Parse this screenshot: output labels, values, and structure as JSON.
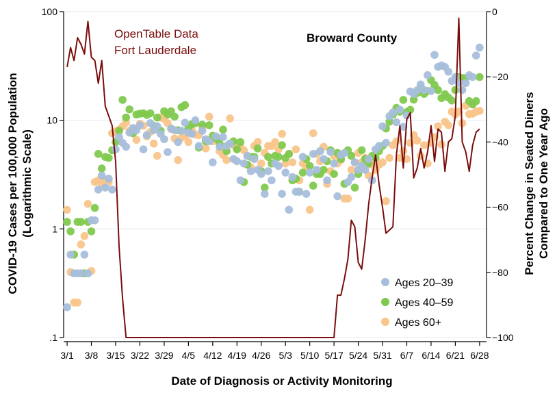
{
  "chart_data": {
    "type": "scatter",
    "title": "Broward County",
    "annotation": [
      "OpenTable Data",
      "Fort Lauderdale"
    ],
    "xlabel": "Date of Diagnosis or Activity Monitoring",
    "ylabel_left": [
      "COVID-19 Cases per 100,000 Population",
      "(Logarithmic Scale)"
    ],
    "ylabel_right": [
      "Percent Change in Seated Diners",
      "Compared to One Year Ago"
    ],
    "x_ticks": [
      "3/1",
      "3/8",
      "3/15",
      "3/22",
      "3/29",
      "4/5",
      "4/12",
      "4/19",
      "4/26",
      "5/3",
      "5/10",
      "5/17",
      "5/24",
      "5/31",
      "6/7",
      "6/14",
      "6/21",
      "6/28"
    ],
    "x_range": [
      "2020-02-29",
      "2020-06-30"
    ],
    "y_left_scale": "log",
    "y_left_ticks": [
      {
        "v": 0.1,
        "label": ".1"
      },
      {
        "v": 1,
        "label": "1"
      },
      {
        "v": 10,
        "label": "10"
      },
      {
        "v": 100,
        "label": "100"
      }
    ],
    "y_right_ticks": [
      0,
      -20,
      -40,
      -60,
      -80,
      -100
    ],
    "y_right_range": [
      -100,
      0
    ],
    "legend_placement": "bottom-right",
    "line_color": "#7a0c0c",
    "series": [
      {
        "name": "Ages 20–39",
        "color": "#a7bedb",
        "x": [
          "2020-03-01",
          "2020-03-02",
          "2020-03-03",
          "2020-03-04",
          "2020-03-05",
          "2020-03-06",
          "2020-03-07",
          "2020-03-08",
          "2020-03-09",
          "2020-03-10",
          "2020-03-11",
          "2020-03-12",
          "2020-03-13",
          "2020-03-14",
          "2020-03-15",
          "2020-03-16",
          "2020-03-17",
          "2020-03-18",
          "2020-03-19",
          "2020-03-20",
          "2020-03-21",
          "2020-03-22",
          "2020-03-23",
          "2020-03-24",
          "2020-03-25",
          "2020-03-26",
          "2020-03-27",
          "2020-03-28",
          "2020-03-29",
          "2020-03-30",
          "2020-03-31",
          "2020-04-01",
          "2020-04-02",
          "2020-04-03",
          "2020-04-04",
          "2020-04-05",
          "2020-04-06",
          "2020-04-07",
          "2020-04-08",
          "2020-04-09",
          "2020-04-10",
          "2020-04-11",
          "2020-04-12",
          "2020-04-13",
          "2020-04-14",
          "2020-04-15",
          "2020-04-16",
          "2020-04-17",
          "2020-04-18",
          "2020-04-19",
          "2020-04-20",
          "2020-04-21",
          "2020-04-22",
          "2020-04-23",
          "2020-04-24",
          "2020-04-25",
          "2020-04-26",
          "2020-04-27",
          "2020-04-28",
          "2020-04-29",
          "2020-04-30",
          "2020-05-01",
          "2020-05-02",
          "2020-05-03",
          "2020-05-04",
          "2020-05-05",
          "2020-05-06",
          "2020-05-07",
          "2020-05-08",
          "2020-05-09",
          "2020-05-10",
          "2020-05-11",
          "2020-05-12",
          "2020-05-13",
          "2020-05-14",
          "2020-05-15",
          "2020-05-16",
          "2020-05-17",
          "2020-05-18",
          "2020-05-19",
          "2020-05-20",
          "2020-05-21",
          "2020-05-22",
          "2020-05-23",
          "2020-05-24",
          "2020-05-25",
          "2020-05-26",
          "2020-05-27",
          "2020-05-28",
          "2020-05-29",
          "2020-05-30",
          "2020-05-31",
          "2020-06-01",
          "2020-06-02",
          "2020-06-03",
          "2020-06-04",
          "2020-06-05",
          "2020-06-06",
          "2020-06-07",
          "2020-06-08",
          "2020-06-09",
          "2020-06-10",
          "2020-06-11",
          "2020-06-12",
          "2020-06-13",
          "2020-06-14",
          "2020-06-15",
          "2020-06-16",
          "2020-06-17",
          "2020-06-18",
          "2020-06-19",
          "2020-06-20",
          "2020-06-21",
          "2020-06-22",
          "2020-06-23",
          "2020-06-24",
          "2020-06-25",
          "2020-06-26",
          "2020-06-27",
          "2020-06-28"
        ],
        "values": [
          0.19,
          0.58,
          0.39,
          0.39,
          0.39,
          0.58,
          0.39,
          1.2,
          1.2,
          2.3,
          3.1,
          2.4,
          2.9,
          2.3,
          5.4,
          7.0,
          6.2,
          5.7,
          7.7,
          8.5,
          8.1,
          9.0,
          5.4,
          7.3,
          9.4,
          8.1,
          8.8,
          7.5,
          6.7,
          5.1,
          8.4,
          8.1,
          6.3,
          8.0,
          9.5,
          7.7,
          7.5,
          10.0,
          5.8,
          8.0,
          6.7,
          6.4,
          4.1,
          7.1,
          5.7,
          7.0,
          5.8,
          6.1,
          4.4,
          4.2,
          2.8,
          4.0,
          4.7,
          3.4,
          4.4,
          3.5,
          3.2,
          2.1,
          3.4,
          2.8,
          4.0,
          3.8,
          2.1,
          3.3,
          1.5,
          3.0,
          2.2,
          2.2,
          4.6,
          2.1,
          3.3,
          4.9,
          3.5,
          5.2,
          4.4,
          2.8,
          5.1,
          4.0,
          2.0,
          4.8,
          5.0,
          2.7,
          3.0,
          4.1,
          3.5,
          3.8,
          3.5,
          4.4,
          2.8,
          5.4,
          5.8,
          8.8,
          6.2,
          10.9,
          11.8,
          9.6,
          12.5,
          8.7,
          11.1,
          18.4,
          17.5,
          18.9,
          21.4,
          19.0,
          26.0,
          18.6,
          40.0,
          31.0,
          32.0,
          31.0,
          28.0,
          23.0,
          25.0,
          22.0,
          19.0,
          22.0,
          26.0,
          25.0,
          39.5,
          46.7
        ],
        "note_missing": "values approximate"
      },
      {
        "name": "Ages 40–59",
        "color": "#7fc94e",
        "x": [
          "2020-03-01",
          "2020-03-02",
          "2020-03-03",
          "2020-03-04",
          "2020-03-05",
          "2020-03-06",
          "2020-03-07",
          "2020-03-08",
          "2020-03-09",
          "2020-03-10",
          "2020-03-11",
          "2020-03-12",
          "2020-03-13",
          "2020-03-14",
          "2020-03-15",
          "2020-03-16",
          "2020-03-17",
          "2020-03-18",
          "2020-03-19",
          "2020-03-20",
          "2020-03-21",
          "2020-03-22",
          "2020-03-23",
          "2020-03-24",
          "2020-03-25",
          "2020-03-26",
          "2020-03-27",
          "2020-03-28",
          "2020-03-29",
          "2020-03-30",
          "2020-03-31",
          "2020-04-01",
          "2020-04-02",
          "2020-04-03",
          "2020-04-04",
          "2020-04-05",
          "2020-04-06",
          "2020-04-07",
          "2020-04-08",
          "2020-04-09",
          "2020-04-10",
          "2020-04-11",
          "2020-04-12",
          "2020-04-13",
          "2020-04-14",
          "2020-04-15",
          "2020-04-16",
          "2020-04-17",
          "2020-04-18",
          "2020-04-19",
          "2020-04-20",
          "2020-04-21",
          "2020-04-22",
          "2020-04-23",
          "2020-04-24",
          "2020-04-25",
          "2020-04-26",
          "2020-04-27",
          "2020-04-28",
          "2020-04-29",
          "2020-04-30",
          "2020-05-01",
          "2020-05-02",
          "2020-05-03",
          "2020-05-04",
          "2020-05-05",
          "2020-05-06",
          "2020-05-07",
          "2020-05-08",
          "2020-05-09",
          "2020-05-10",
          "2020-05-11",
          "2020-05-12",
          "2020-05-13",
          "2020-05-14",
          "2020-05-15",
          "2020-05-16",
          "2020-05-17",
          "2020-05-18",
          "2020-05-19",
          "2020-05-20",
          "2020-05-21",
          "2020-05-22",
          "2020-05-23",
          "2020-05-24",
          "2020-05-25",
          "2020-05-26",
          "2020-05-27",
          "2020-05-28",
          "2020-05-29",
          "2020-05-30",
          "2020-05-31",
          "2020-06-01",
          "2020-06-02",
          "2020-06-03",
          "2020-06-04",
          "2020-06-05",
          "2020-06-06",
          "2020-06-07",
          "2020-06-08",
          "2020-06-09",
          "2020-06-10",
          "2020-06-11",
          "2020-06-12",
          "2020-06-13",
          "2020-06-14",
          "2020-06-15",
          "2020-06-16",
          "2020-06-17",
          "2020-06-18",
          "2020-06-19",
          "2020-06-20",
          "2020-06-21",
          "2020-06-22",
          "2020-06-23",
          "2020-06-24",
          "2020-06-25",
          "2020-06-26",
          "2020-06-27",
          "2020-06-28"
        ],
        "values": [
          1.16,
          0.95,
          0.58,
          1.16,
          1.16,
          0.39,
          1.16,
          0.95,
          1.56,
          4.9,
          3.6,
          4.6,
          4.5,
          5.3,
          6.3,
          8.0,
          15.4,
          10.6,
          12.6,
          7.6,
          11.3,
          11.5,
          11.6,
          11.2,
          11.6,
          8.9,
          10.6,
          8.0,
          12.1,
          11.3,
          12.1,
          10.8,
          8.1,
          13.2,
          13.8,
          8.5,
          9.2,
          9.4,
          5.6,
          9.1,
          6.4,
          9.0,
          7.2,
          6.8,
          6.1,
          8.2,
          5.2,
          6.1,
          6.4,
          5.4,
          6.3,
          2.7,
          3.9,
          4.6,
          4.6,
          5.5,
          3.4,
          2.4,
          4.6,
          4.0,
          4.7,
          4.6,
          5.9,
          4.5,
          4.9,
          2.8,
          2.9,
          2.2,
          3.3,
          4.4,
          3.8,
          2.5,
          3.2,
          3.2,
          3.5,
          4.2,
          5.3,
          3.2,
          5.0,
          4.4,
          2.6,
          5.3,
          4.7,
          2.4,
          3.2,
          5.3,
          4.4,
          4.0,
          4.7,
          4.5,
          5.2,
          5.8,
          8.4,
          9.7,
          11.3,
          13.0,
          12.0,
          15.4,
          11.9,
          12.5,
          15.5,
          17.8,
          20.0,
          17.5,
          18.6,
          23.4,
          21.1,
          19.0,
          16.0,
          17.4,
          16.2,
          15.2,
          19.0,
          25.0,
          24.5,
          24.5,
          15.0,
          14.0,
          15.0,
          25.0
        ],
        "note_missing": "values approximate"
      },
      {
        "name": "Ages 60+",
        "color": "#f9c58a",
        "x": [
          "2020-03-01",
          "2020-03-02",
          "2020-03-03",
          "2020-03-04",
          "2020-03-05",
          "2020-03-06",
          "2020-03-07",
          "2020-03-08",
          "2020-03-09",
          "2020-03-10",
          "2020-03-11",
          "2020-03-12",
          "2020-03-13",
          "2020-03-14",
          "2020-03-15",
          "2020-03-16",
          "2020-03-17",
          "2020-03-18",
          "2020-03-19",
          "2020-03-20",
          "2020-03-21",
          "2020-03-22",
          "2020-03-23",
          "2020-03-24",
          "2020-03-25",
          "2020-03-26",
          "2020-03-27",
          "2020-03-28",
          "2020-03-29",
          "2020-03-30",
          "2020-03-31",
          "2020-04-01",
          "2020-04-02",
          "2020-04-03",
          "2020-04-04",
          "2020-04-05",
          "2020-04-06",
          "2020-04-07",
          "2020-04-08",
          "2020-04-09",
          "2020-04-10",
          "2020-04-11",
          "2020-04-12",
          "2020-04-13",
          "2020-04-14",
          "2020-04-15",
          "2020-04-16",
          "2020-04-17",
          "2020-04-18",
          "2020-04-19",
          "2020-04-20",
          "2020-04-21",
          "2020-04-22",
          "2020-04-23",
          "2020-04-24",
          "2020-04-25",
          "2020-04-26",
          "2020-04-27",
          "2020-04-28",
          "2020-04-29",
          "2020-04-30",
          "2020-05-01",
          "2020-05-02",
          "2020-05-03",
          "2020-05-04",
          "2020-05-05",
          "2020-05-06",
          "2020-05-07",
          "2020-05-08",
          "2020-05-09",
          "2020-05-10",
          "2020-05-11",
          "2020-05-12",
          "2020-05-13",
          "2020-05-14",
          "2020-05-15",
          "2020-05-16",
          "2020-05-17",
          "2020-05-18",
          "2020-05-19",
          "2020-05-20",
          "2020-05-21",
          "2020-05-22",
          "2020-05-23",
          "2020-05-24",
          "2020-05-25",
          "2020-05-26",
          "2020-05-27",
          "2020-05-28",
          "2020-05-29",
          "2020-05-30",
          "2020-05-31",
          "2020-06-01",
          "2020-06-02",
          "2020-06-03",
          "2020-06-04",
          "2020-06-05",
          "2020-06-06",
          "2020-06-07",
          "2020-06-08",
          "2020-06-09",
          "2020-06-10",
          "2020-06-11",
          "2020-06-12",
          "2020-06-13",
          "2020-06-14",
          "2020-06-15",
          "2020-06-16",
          "2020-06-17",
          "2020-06-18",
          "2020-06-19",
          "2020-06-20",
          "2020-06-21",
          "2020-06-22",
          "2020-06-23",
          "2020-06-24",
          "2020-06-25",
          "2020-06-26",
          "2020-06-27",
          "2020-06-28"
        ],
        "values": [
          1.5,
          0.4,
          0.21,
          0.21,
          0.72,
          0.86,
          1.7,
          0.41,
          2.7,
          2.8,
          2.6,
          2.8,
          2.7,
          7.6,
          7.9,
          8.2,
          8.8,
          9.5,
          8.0,
          8.4,
          6.6,
          9.3,
          8.9,
          7.1,
          7.8,
          6.1,
          4.7,
          10.6,
          10.3,
          9.4,
          8.3,
          6.8,
          4.3,
          6.9,
          7.1,
          6.3,
          8.1,
          7.4,
          7.3,
          8.5,
          5.5,
          10.8,
          6.4,
          6.8,
          5.2,
          4.8,
          4.3,
          10.4,
          5.9,
          5.5,
          5.7,
          5.3,
          4.7,
          3.7,
          5.8,
          6.3,
          4.0,
          5.0,
          5.8,
          5.8,
          6.3,
          5.4,
          7.5,
          4.0,
          4.9,
          4.1,
          5.4,
          2.8,
          4.0,
          3.8,
          1.5,
          7.6,
          4.9,
          4.2,
          5.7,
          2.6,
          3.4,
          4.7,
          4.0,
          4.3,
          1.9,
          1.9,
          3.5,
          4.1,
          5.0,
          4.1,
          4.5,
          3.1,
          3.9,
          3.5,
          3.9,
          4.1,
          1.8,
          4.5,
          5.9,
          6.4,
          4.5,
          5.2,
          4.4,
          6.2,
          7.3,
          6.5,
          4.7,
          5.9,
          4.0,
          6.2,
          7.0,
          8.8,
          6.0,
          9.7,
          9.0,
          12.0,
          11.3,
          12.0,
          9.4,
          13.6,
          11.4,
          11.5,
          12.0,
          12.2
        ],
        "note_missing": "values approximate"
      },
      {
        "name": "OpenTable Data Fort Lauderdale",
        "axis": "right",
        "x": [
          "2020-03-01",
          "2020-03-02",
          "2020-03-03",
          "2020-03-04",
          "2020-03-05",
          "2020-03-06",
          "2020-03-07",
          "2020-03-08",
          "2020-03-09",
          "2020-03-10",
          "2020-03-11",
          "2020-03-12",
          "2020-03-13",
          "2020-03-14",
          "2020-03-15",
          "2020-03-16",
          "2020-03-17",
          "2020-03-18",
          "2020-03-19",
          "2020-03-20",
          "2020-05-17",
          "2020-05-18",
          "2020-05-19",
          "2020-05-20",
          "2020-05-21",
          "2020-05-22",
          "2020-05-23",
          "2020-05-24",
          "2020-05-25",
          "2020-05-26",
          "2020-05-27",
          "2020-05-28",
          "2020-05-29",
          "2020-05-30",
          "2020-05-31",
          "2020-06-01",
          "2020-06-02",
          "2020-06-03",
          "2020-06-04",
          "2020-06-05",
          "2020-06-06",
          "2020-06-07",
          "2020-06-08",
          "2020-06-09",
          "2020-06-10",
          "2020-06-11",
          "2020-06-12",
          "2020-06-13",
          "2020-06-14",
          "2020-06-15",
          "2020-06-16",
          "2020-06-17",
          "2020-06-18",
          "2020-06-19",
          "2020-06-20",
          "2020-06-21",
          "2020-06-22",
          "2020-06-23",
          "2020-06-24",
          "2020-06-25",
          "2020-06-26",
          "2020-06-27",
          "2020-06-28"
        ],
        "values": [
          -17,
          -11,
          -15,
          -8,
          -10,
          -13,
          -3,
          -14,
          -15,
          -22,
          -15,
          -29,
          -32,
          -35,
          -46,
          -72,
          -88,
          -100,
          -100,
          -100,
          -100,
          -87,
          -87,
          -82,
          -76,
          -64,
          -66,
          -77,
          -79,
          -70,
          -59,
          -51,
          -44,
          -53,
          -60,
          -68,
          -67,
          -66,
          -44,
          -35,
          -48,
          -33,
          -31,
          -51,
          -48,
          -42,
          -48,
          -43,
          -35,
          -46,
          -36,
          -37,
          -49,
          -40,
          -39,
          -32,
          -2,
          -40,
          -43,
          -49,
          -41,
          -37,
          -36
        ],
        "note_missing": "line is flat at -100 from 2020-03-18 through 2020-05-17"
      }
    ]
  }
}
